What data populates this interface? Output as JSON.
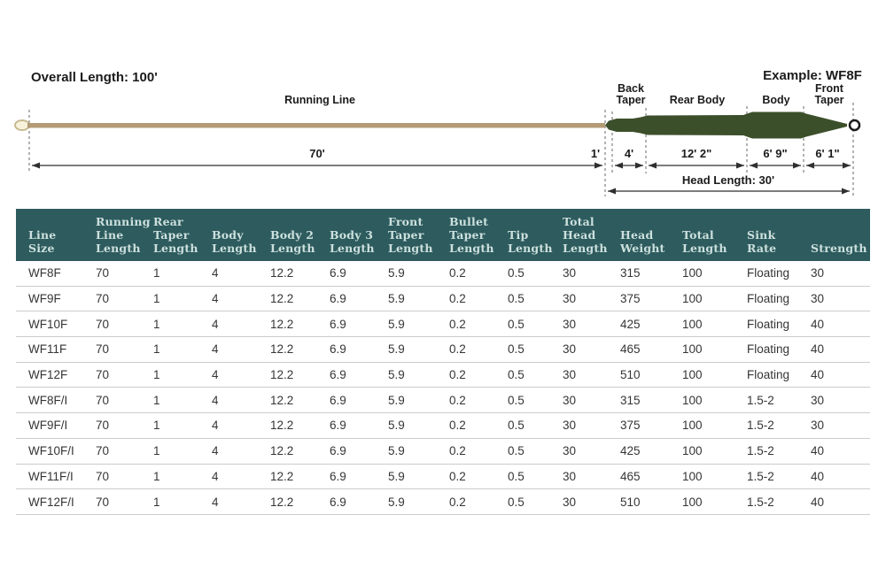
{
  "diagram": {
    "overall_length": "Overall Length: 100'",
    "example_label": "Example: WF8F",
    "running_line_label": "Running Line",
    "sections": {
      "back_taper_line1": "Back",
      "back_taper_line2": "Taper",
      "rear_body": "Rear Body",
      "body": "Body",
      "front_taper_line1": "Front",
      "front_taper_line2": "Taper"
    },
    "dimensions": {
      "running_line": "70'",
      "tip": "1'",
      "back_taper": "4'",
      "rear_body": "12' 2\"",
      "body": "6' 9\"",
      "front_taper": "6' 1\"",
      "head_length": "Head Length: 30'"
    },
    "colors": {
      "running_line": "#b39b76",
      "head": "#3c4f2b",
      "loop_fill": "#f8f2dd",
      "loop_stroke": "#c8ba90"
    }
  },
  "table": {
    "colors": {
      "header_bg": "#2d5b5e",
      "header_text": "#cde0dd"
    },
    "headers": [
      "Line Size",
      "Running Line Length",
      "Rear Taper Length",
      "Body Length",
      "Body 2 Length",
      "Body 3 Length",
      "Front Taper Length",
      "Bullet Taper Length",
      "Tip Length",
      "Total Head Length",
      "Head Weight",
      "Total Length",
      "Sink Rate",
      "Strength"
    ],
    "rows": [
      [
        "WF8F",
        "70",
        "1",
        "4",
        "12.2",
        "6.9",
        "5.9",
        "0.2",
        "0.5",
        "30",
        "315",
        "100",
        "Floating",
        "30"
      ],
      [
        "WF9F",
        "70",
        "1",
        "4",
        "12.2",
        "6.9",
        "5.9",
        "0.2",
        "0.5",
        "30",
        "375",
        "100",
        "Floating",
        "30"
      ],
      [
        "WF10F",
        "70",
        "1",
        "4",
        "12.2",
        "6.9",
        "5.9",
        "0.2",
        "0.5",
        "30",
        "425",
        "100",
        "Floating",
        "40"
      ],
      [
        "WF11F",
        "70",
        "1",
        "4",
        "12.2",
        "6.9",
        "5.9",
        "0.2",
        "0.5",
        "30",
        "465",
        "100",
        "Floating",
        "40"
      ],
      [
        "WF12F",
        "70",
        "1",
        "4",
        "12.2",
        "6.9",
        "5.9",
        "0.2",
        "0.5",
        "30",
        "510",
        "100",
        "Floating",
        "40"
      ],
      [
        "WF8F/I",
        "70",
        "1",
        "4",
        "12.2",
        "6.9",
        "5.9",
        "0.2",
        "0.5",
        "30",
        "315",
        "100",
        "1.5-2",
        "30"
      ],
      [
        "WF9F/I",
        "70",
        "1",
        "4",
        "12.2",
        "6.9",
        "5.9",
        "0.2",
        "0.5",
        "30",
        "375",
        "100",
        "1.5-2",
        "30"
      ],
      [
        "WF10F/I",
        "70",
        "1",
        "4",
        "12.2",
        "6.9",
        "5.9",
        "0.2",
        "0.5",
        "30",
        "425",
        "100",
        "1.5-2",
        "40"
      ],
      [
        "WF11F/I",
        "70",
        "1",
        "4",
        "12.2",
        "6.9",
        "5.9",
        "0.2",
        "0.5",
        "30",
        "465",
        "100",
        "1.5-2",
        "40"
      ],
      [
        "WF12F/I",
        "70",
        "1",
        "4",
        "12.2",
        "6.9",
        "5.9",
        "0.2",
        "0.5",
        "30",
        "510",
        "100",
        "1.5-2",
        "40"
      ]
    ]
  }
}
